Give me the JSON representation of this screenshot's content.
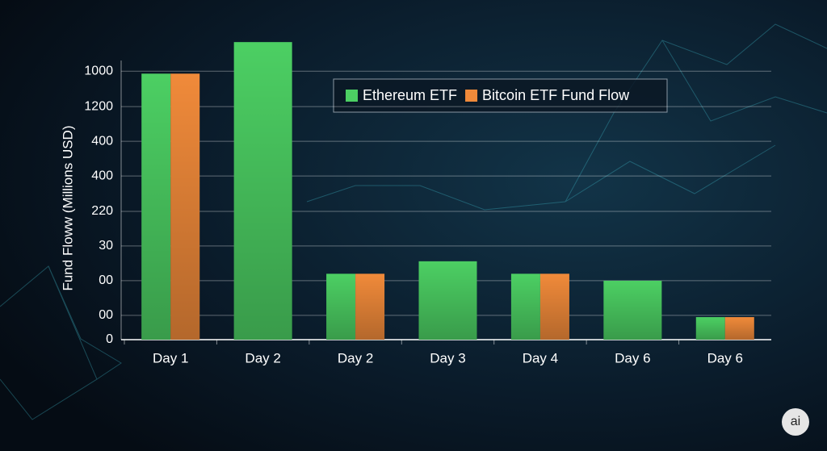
{
  "chart_data": {
    "type": "bar",
    "y_label": "Fund Floww  (Millions USD)",
    "categories": [
      "Day 1",
      "Day 2",
      "Day 2",
      "Day 3",
      "Day 4",
      "Day 6",
      "Day 6"
    ],
    "series": [
      {
        "name": "Ethereum ETF",
        "color": "#4ccf63",
        "values": [
          7.67,
          8.58,
          1.9,
          2.26,
          1.9,
          1.7,
          0.65
        ]
      },
      {
        "name": "Bitcoin ETF Fund Flow",
        "color": "#f08a3a",
        "values": [
          7.67,
          null,
          1.9,
          null,
          1.9,
          null,
          0.65
        ]
      }
    ],
    "ylim": [
      0,
      8.7
    ],
    "yticks": [
      0,
      {
        "value": 0.7,
        "label": "00"
      },
      {
        "value": 1.7,
        "label": "00"
      },
      {
        "value": 2.7,
        "label": "30"
      },
      {
        "value": 3.7,
        "label": "220"
      },
      {
        "value": 4.72,
        "label": "400"
      },
      {
        "value": 5.72,
        "label": "400"
      },
      {
        "value": 6.72,
        "label": "1200"
      },
      {
        "value": 7.74,
        "label": "1000"
      }
    ],
    "grid": true,
    "legend": "top-right",
    "watermark": "ai"
  }
}
